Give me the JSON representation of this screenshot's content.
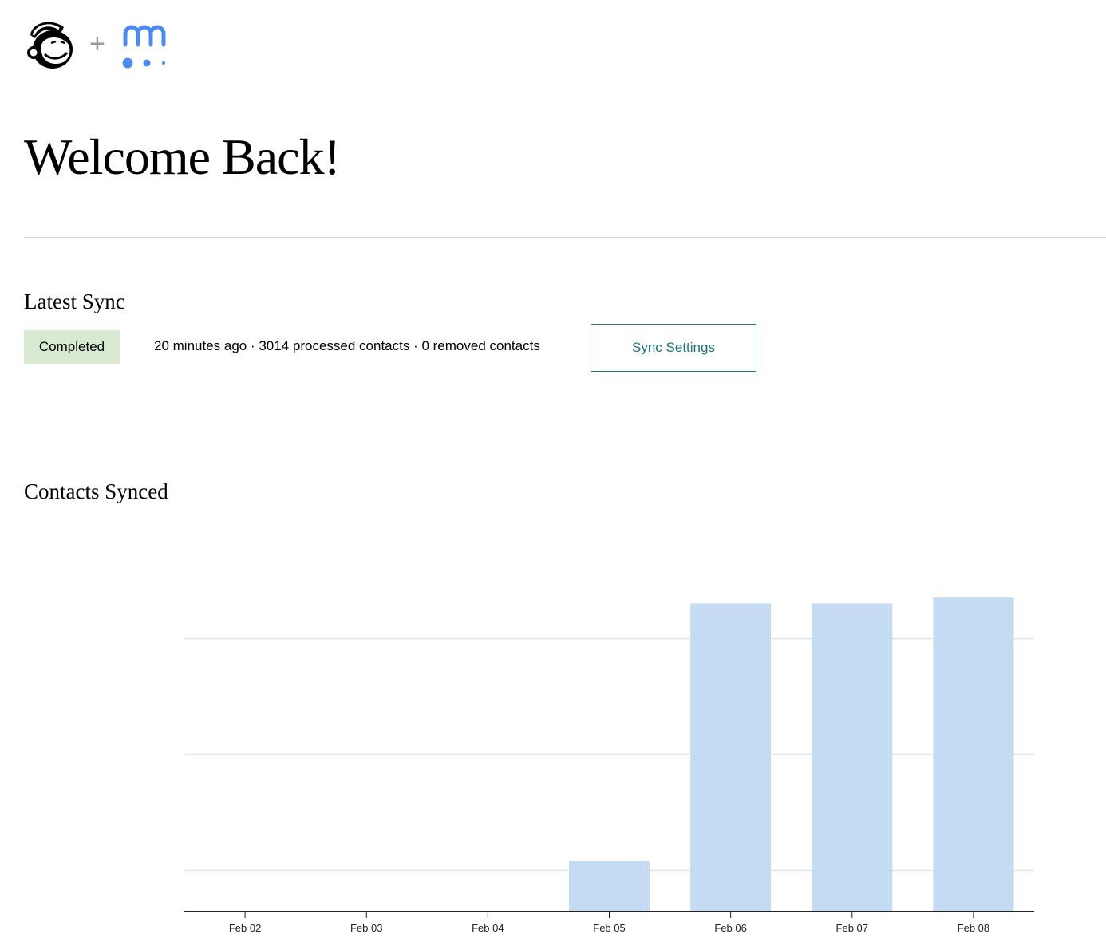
{
  "header": {
    "logos": [
      "mailchimp-logo",
      "meetup-logo"
    ],
    "plus": "+"
  },
  "page_title": "Welcome Back!",
  "latest_sync": {
    "heading": "Latest Sync",
    "status": "Completed",
    "status_color": "#d9ead3",
    "summary": "20 minutes ago · 3014 processed contacts · 0 removed contacts",
    "settings_button": "Sync Settings",
    "accent_color": "#1a7478"
  },
  "contacts_synced": {
    "heading": "Contacts Synced"
  },
  "chart_data": {
    "type": "bar",
    "title": "",
    "xlabel": "",
    "ylabel": "",
    "categories": [
      "Feb 02",
      "Feb 03",
      "Feb 04",
      "Feb 05",
      "Feb 06",
      "Feb 07",
      "Feb 08"
    ],
    "values": [
      0,
      0,
      0,
      0.44,
      2.66,
      2.66,
      2.71
    ],
    "units_note_visible": false,
    "gridlines": [
      0.36,
      1.36,
      2.36
    ],
    "ylim": [
      0,
      3
    ],
    "y_tick_labels_shown": false,
    "grid": true,
    "bar_color": "#c5dbf1"
  }
}
